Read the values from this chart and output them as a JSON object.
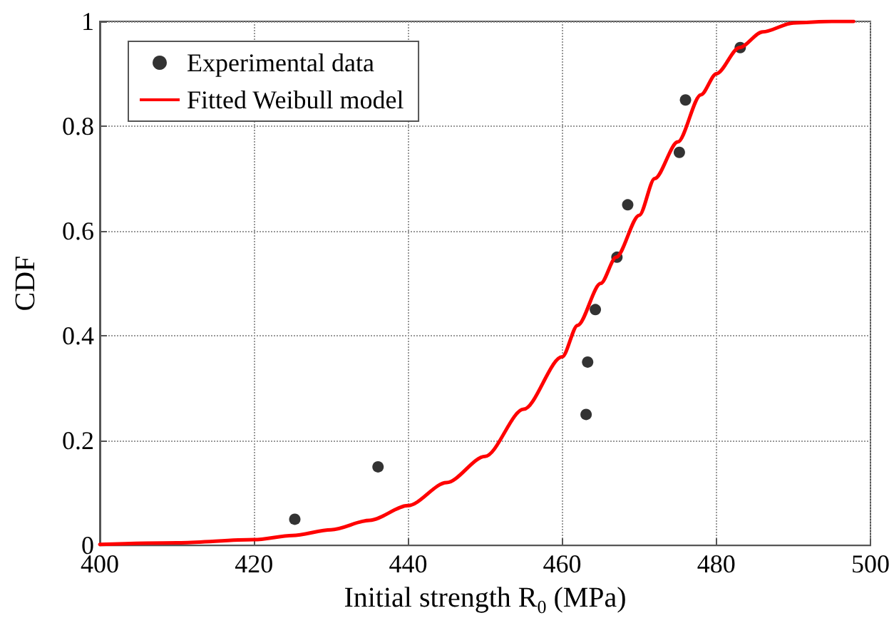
{
  "chart_data": {
    "type": "scatter",
    "xlabel": "Initial strength R$_{0}$ (MPa)",
    "ylabel": "CDF",
    "xlim": [
      400,
      500
    ],
    "xticks": [
      400,
      420,
      440,
      460,
      480,
      500
    ],
    "ylim": [
      0,
      1
    ],
    "yticks": [
      0,
      0.2,
      0.4,
      0.6,
      0.8,
      1
    ],
    "grid": true,
    "legend": "top left",
    "line_style": "solid",
    "series": [
      {
        "name": "Experimental data",
        "marker": "circle",
        "color": "#000000",
        "x": [
          425.3,
          436.1,
          463.1,
          463.3,
          464.3,
          467.1,
          468.5,
          475.2,
          476.0,
          483.1
        ],
        "values": [
          0.05,
          0.15,
          0.25,
          0.35,
          0.45,
          0.55,
          0.65,
          0.75,
          0.85,
          0.95
        ]
      },
      {
        "name": "Fitted Weibull model",
        "type": "line",
        "marker": "none",
        "color": "#ff0000",
        "x": [
          400,
          410,
          420,
          425,
          430,
          435,
          440,
          445,
          450,
          455,
          460,
          462,
          465,
          467,
          470,
          472,
          475,
          478,
          480,
          483,
          486,
          490,
          495,
          497.8
        ],
        "values": [
          0.002,
          0.005,
          0.011,
          0.019,
          0.03,
          0.048,
          0.076,
          0.12,
          0.17,
          0.26,
          0.36,
          0.42,
          0.5,
          0.55,
          0.63,
          0.7,
          0.77,
          0.86,
          0.9,
          0.95,
          0.98,
          0.997,
          1,
          1
        ]
      }
    ]
  }
}
